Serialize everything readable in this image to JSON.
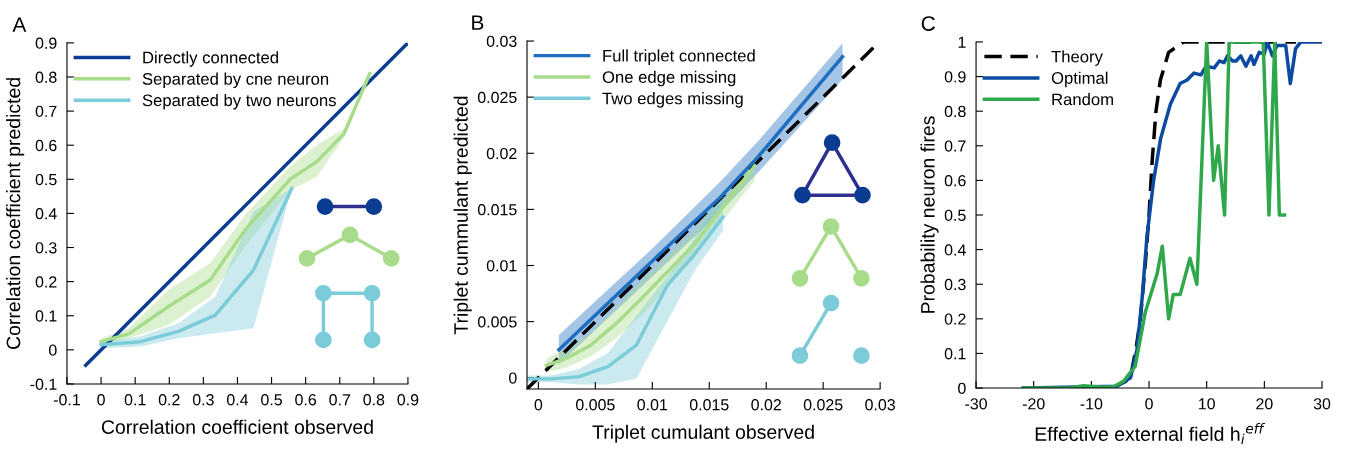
{
  "chart_data": [
    {
      "type": "line",
      "xlabel": "Correlation coefficient observed",
      "ylabel": "Correlation coefficient predicted",
      "annotations": [
        "A"
      ],
      "legend": "top left",
      "grid": false,
      "xlim": [
        -0.1,
        0.9
      ],
      "ylim": [
        -0.1,
        0.9
      ],
      "xticks": [
        -0.1,
        0,
        0.1,
        0.2,
        0.3,
        0.4,
        0.5,
        0.6,
        0.7,
        0.8,
        0.9
      ],
      "yticks": [
        -0.1,
        0,
        0.1,
        0.2,
        0.3,
        0.4,
        0.5,
        0.6,
        0.7,
        0.8,
        0.9
      ],
      "series": [
        {
          "name": "Directly connected",
          "color": "#0a3d91",
          "x": [
            -0.045,
            0.9
          ],
          "values": [
            -0.045,
            0.9
          ]
        },
        {
          "name": "Separated by cne neuron",
          "color": "#a8dc8a",
          "x": [
            0,
            0.081,
            0.198,
            0.32,
            0.422,
            0.554,
            0.632,
            0.713,
            0.788
          ],
          "values": [
            0.024,
            0.047,
            0.127,
            0.205,
            0.351,
            0.5,
            0.551,
            0.634,
            0.81
          ],
          "lower": [
            0.015,
            0.034,
            0.073,
            0.156,
            0.302,
            0.468,
            0.507,
            0.624,
            0.81
          ],
          "upper": [
            0.034,
            0.063,
            0.176,
            0.254,
            0.395,
            0.537,
            0.6,
            0.649,
            0.81
          ]
        },
        {
          "name": "Separated by two neurons",
          "color": "#7ccbd8",
          "x": [
            0,
            0.115,
            0.227,
            0.335,
            0.447,
            0.559
          ],
          "values": [
            0.015,
            0.024,
            0.054,
            0.102,
            0.234,
            0.473
          ],
          "lower": [
            0.005,
            0.01,
            0.034,
            0.049,
            0.063,
            0.473
          ],
          "upper": [
            0.024,
            0.039,
            0.078,
            0.156,
            0.405,
            0.473
          ]
        }
      ]
    },
    {
      "type": "line",
      "xlabel": "Triplet cumulant observed",
      "ylabel": "Triplet cummulant predicted",
      "annotations": [
        "B"
      ],
      "legend": "top left",
      "grid": false,
      "xlim": [
        -0.001,
        0.03
      ],
      "ylim": [
        -0.001,
        0.03
      ],
      "xticks": [
        0,
        0.005,
        0.01,
        0.015,
        0.02,
        0.025,
        0.03
      ],
      "yticks": [
        0,
        0.005,
        0.01,
        0.015,
        0.02,
        0.025,
        0.03
      ],
      "series": [
        {
          "color": "#000000",
          "line_style": "dashed",
          "x": [
            -0.001,
            0.0296
          ],
          "values": [
            -0.001,
            0.0296
          ]
        },
        {
          "name": "Full triplet connected",
          "color": "#1f6fc0",
          "x": [
            0.0018,
            0.0101,
            0.016,
            0.0193,
            0.0267
          ],
          "values": [
            0.0025,
            0.0105,
            0.0161,
            0.0197,
            0.0286
          ],
          "lower": [
            0.0012,
            0.0091,
            0.0148,
            0.0183,
            0.0266
          ],
          "upper": [
            0.0038,
            0.0116,
            0.0175,
            0.0211,
            0.0298
          ]
        },
        {
          "name": "One edge missing",
          "color": "#a8dc8a",
          "x": [
            0.0007,
            0.0024,
            0.0046,
            0.0068,
            0.0089,
            0.0113,
            0.0137,
            0.0162,
            0.019
          ],
          "values": [
            0.0011,
            0.0017,
            0.0029,
            0.0048,
            0.0069,
            0.0094,
            0.0119,
            0.0152,
            0.0189
          ],
          "lower": [
            0.0005,
            0.0009,
            0.0019,
            0.0035,
            0.0054,
            0.008,
            0.0107,
            0.014,
            0.0176
          ],
          "upper": [
            0.0017,
            0.0026,
            0.004,
            0.0062,
            0.0085,
            0.0108,
            0.0131,
            0.0163,
            0.0198
          ]
        },
        {
          "name": "Two edges missing",
          "color": "#7ccbd8",
          "x": [
            -0.001,
            0.0012,
            0.0036,
            0.0061,
            0.0086,
            0.0113,
            0.0137,
            0.0162
          ],
          "values": [
            -0.0001,
            -0.0001,
            0.0001,
            0.001,
            0.0029,
            0.0082,
            0.011,
            0.0143
          ],
          "lower": [
            -0.0004,
            -0.0004,
            -0.0006,
            -0.0006,
            -0.0001,
            0.005,
            0.0095,
            0.0131
          ],
          "upper": [
            0.0002,
            0.0002,
            0.0008,
            0.0022,
            0.0055,
            0.009,
            0.0124,
            0.0168
          ]
        }
      ]
    },
    {
      "type": "line",
      "xlabel": "Effective external field h$_{i}$$^{eff}$",
      "ylabel": "Probability neuron fires",
      "annotations": [
        "C"
      ],
      "legend": "top left",
      "grid": false,
      "xlim": [
        -30,
        30
      ],
      "ylim": [
        0,
        1
      ],
      "xticks": [
        -30,
        -20,
        -10,
        0,
        10,
        20,
        30
      ],
      "yticks": [
        0,
        0.1,
        0.2,
        0.3,
        0.4,
        0.5,
        0.6,
        0.7,
        0.8,
        0.9,
        1
      ],
      "series": [
        {
          "name": "Theory",
          "color": "#000000",
          "line_style": "dashed",
          "x": [
            -20,
            -10,
            -6,
            -4,
            -3,
            -2.2,
            -1.5,
            -0.64,
            0,
            0.52,
            1.2,
            1.97,
            3.4,
            6,
            25.5
          ],
          "values": [
            0,
            0,
            0.003,
            0.02,
            0.05,
            0.12,
            0.2,
            0.36,
            0.5,
            0.65,
            0.8,
            0.89,
            0.97,
            1,
            1
          ]
        },
        {
          "name": "Optimal",
          "color": "#0b4aa0",
          "x": [
            -21.8,
            -5.6,
            -3.2,
            -2.1,
            -1.2,
            -0.35,
            0.8,
            2,
            3.7,
            5.4,
            6.6,
            7.8,
            9,
            9.9,
            11.3,
            12.2,
            13,
            13.6,
            14.5,
            15.1,
            15.9,
            16.8,
            17.7,
            18.2,
            19.1,
            20,
            20.5,
            21.4,
            22.2,
            23.7,
            24.5,
            25.4,
            26.3,
            30
          ],
          "values": [
            0,
            0.005,
            0.03,
            0.11,
            0.26,
            0.44,
            0.6,
            0.72,
            0.82,
            0.88,
            0.89,
            0.91,
            0.905,
            0.93,
            0.925,
            0.945,
            0.94,
            0.96,
            0.945,
            0.945,
            0.96,
            0.93,
            0.96,
            0.935,
            0.97,
            0.965,
            1,
            0.96,
            0.99,
            0.99,
            0.88,
            0.98,
            1,
            1
          ]
        },
        {
          "name": "Random",
          "color": "#2ea84a",
          "x": [
            -21.8,
            -13.7,
            -11.4,
            -8.5,
            -6.2,
            -4.4,
            -2.4,
            -0.64,
            1.4,
            2.3,
            3.4,
            4.2,
            5.4,
            7.1,
            8.3,
            10,
            11.2,
            12,
            13.1,
            13.9,
            19.8,
            20.8,
            21.8,
            22.6,
            23.5
          ],
          "values": [
            0,
            0,
            0.007,
            0.003,
            0.003,
            0.02,
            0.063,
            0.22,
            0.33,
            0.41,
            0.2,
            0.27,
            0.27,
            0.375,
            0.3,
            1,
            0.6,
            0.7,
            0.5,
            1,
            1,
            0.5,
            1,
            0.5,
            0.5
          ]
        }
      ]
    }
  ]
}
